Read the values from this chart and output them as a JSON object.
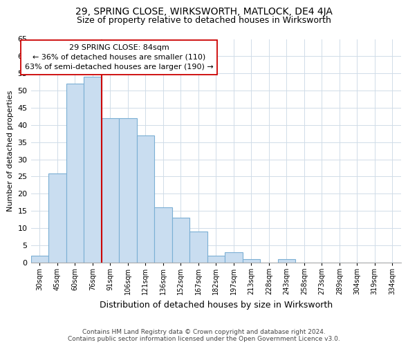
{
  "title": "29, SPRING CLOSE, WIRKSWORTH, MATLOCK, DE4 4JA",
  "subtitle": "Size of property relative to detached houses in Wirksworth",
  "xlabel": "Distribution of detached houses by size in Wirksworth",
  "ylabel": "Number of detached properties",
  "bar_labels": [
    "30sqm",
    "45sqm",
    "60sqm",
    "76sqm",
    "91sqm",
    "106sqm",
    "121sqm",
    "136sqm",
    "152sqm",
    "167sqm",
    "182sqm",
    "197sqm",
    "213sqm",
    "228sqm",
    "243sqm",
    "258sqm",
    "273sqm",
    "289sqm",
    "304sqm",
    "319sqm",
    "334sqm"
  ],
  "bar_values": [
    2,
    26,
    52,
    54,
    42,
    42,
    37,
    16,
    13,
    9,
    2,
    3,
    1,
    0,
    1,
    0,
    0,
    0,
    0,
    0,
    0
  ],
  "bar_color": "#c9ddf0",
  "bar_edge_color": "#7bafd4",
  "vline_x_index": 4,
  "vline_color": "#cc0000",
  "ylim": [
    0,
    65
  ],
  "yticks": [
    0,
    5,
    10,
    15,
    20,
    25,
    30,
    35,
    40,
    45,
    50,
    55,
    60,
    65
  ],
  "annotation_line1": "29 SPRING CLOSE: 84sqm",
  "annotation_line2": "← 36% of detached houses are smaller (110)",
  "annotation_line3": "63% of semi-detached houses are larger (190) →",
  "annotation_box_color": "#ffffff",
  "annotation_box_edge": "#cc0000",
  "footer_line1": "Contains HM Land Registry data © Crown copyright and database right 2024.",
  "footer_line2": "Contains public sector information licensed under the Open Government Licence v3.0.",
  "background_color": "#ffffff",
  "grid_color": "#d0dce8"
}
